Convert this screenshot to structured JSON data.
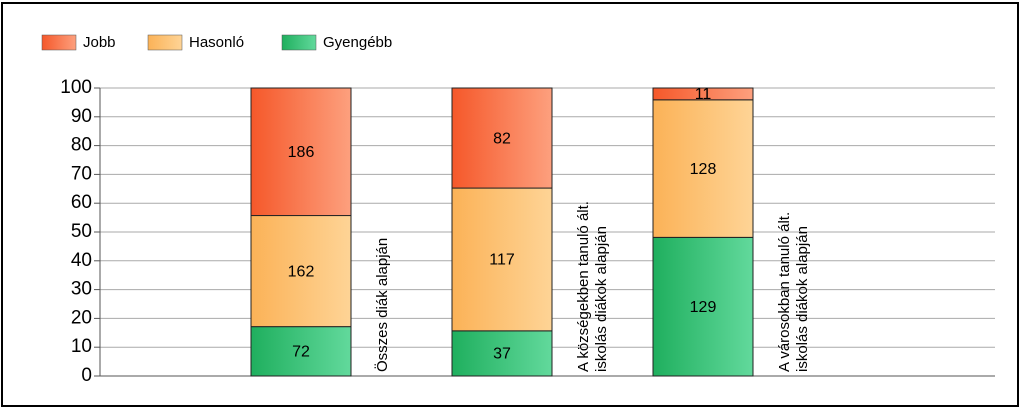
{
  "chart_data": {
    "type": "bar",
    "stacking": "percent",
    "categories": [
      [
        "Összes diák alapján"
      ],
      [
        "A községekben tanuló ált.",
        "iskolás diákok alapján"
      ],
      [
        "A városokban tanuló ált.",
        "iskolás diákok alapján"
      ]
    ],
    "series": [
      {
        "name": "Jobb",
        "color": [
          "#f5582a",
          "#fda07e"
        ],
        "values": [
          186,
          82,
          11
        ]
      },
      {
        "name": "Hasonló",
        "color": [
          "#fbb257",
          "#fed496"
        ],
        "values": [
          162,
          117,
          128
        ]
      },
      {
        "name": "Gyengébb",
        "color": [
          "#1faf5e",
          "#62d99c"
        ],
        "values": [
          72,
          37,
          129
        ]
      }
    ],
    "ylim": [
      0,
      100
    ],
    "yticks": [
      0,
      10,
      20,
      30,
      40,
      50,
      60,
      70,
      80,
      90,
      100
    ],
    "grid": true,
    "legend": "top-left"
  }
}
